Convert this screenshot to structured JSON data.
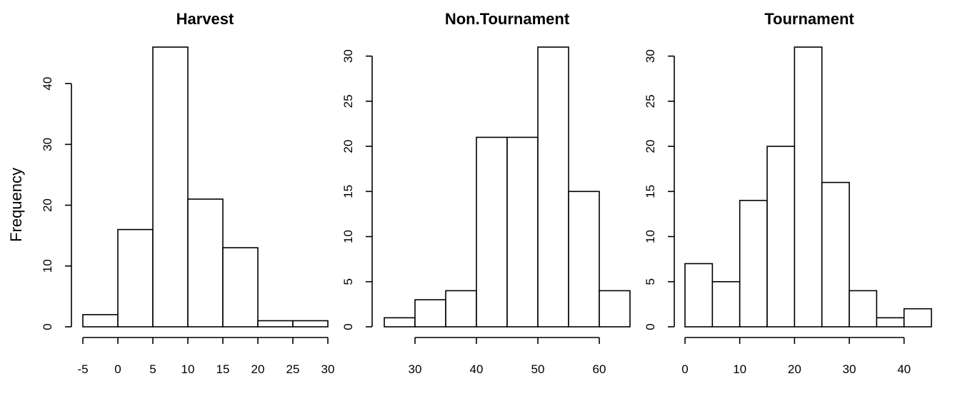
{
  "chart_data": [
    {
      "type": "bar",
      "title": "Harvest",
      "ylabel": "Frequency",
      "xlabel": "",
      "bin_edges": [
        -5,
        0,
        5,
        10,
        15,
        20,
        25,
        30
      ],
      "values": [
        2,
        16,
        46,
        21,
        13,
        1,
        1
      ],
      "xticks": [
        -5,
        0,
        5,
        10,
        15,
        20,
        25,
        30
      ],
      "yticks": [
        0,
        10,
        20,
        30,
        40
      ],
      "ylim": [
        0,
        46
      ]
    },
    {
      "type": "bar",
      "title": "Non.Tournament",
      "ylabel": "",
      "xlabel": "",
      "bin_edges": [
        25,
        30,
        35,
        40,
        45,
        50,
        55,
        60,
        65
      ],
      "values": [
        1,
        3,
        4,
        21,
        21,
        31,
        15,
        4
      ],
      "xticks": [
        30,
        40,
        50,
        60
      ],
      "yticks": [
        0,
        5,
        10,
        15,
        20,
        25,
        30
      ],
      "ylim": [
        0,
        31
      ]
    },
    {
      "type": "bar",
      "title": "Tournament",
      "ylabel": "",
      "xlabel": "",
      "bin_edges": [
        0,
        5,
        10,
        15,
        20,
        25,
        30,
        35,
        40,
        45
      ],
      "values": [
        7,
        5,
        14,
        20,
        31,
        16,
        4,
        1,
        2
      ],
      "xticks": [
        0,
        10,
        20,
        30,
        40
      ],
      "yticks": [
        0,
        5,
        10,
        15,
        20,
        25,
        30
      ],
      "ylim": [
        0,
        31
      ]
    }
  ]
}
